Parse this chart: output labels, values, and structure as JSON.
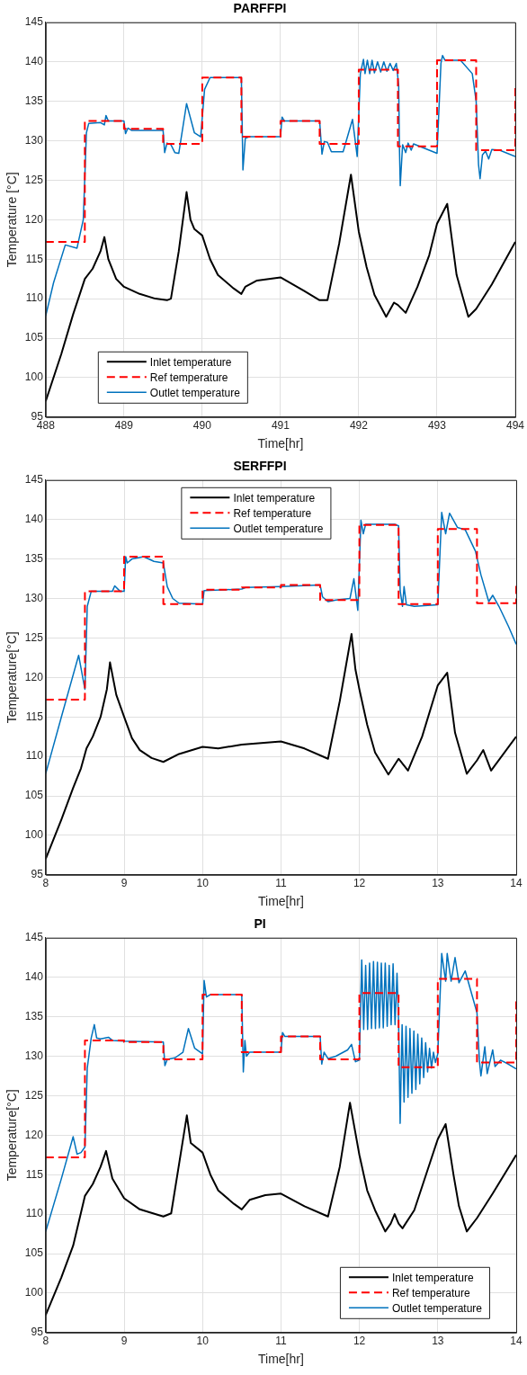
{
  "chart_data": [
    {
      "type": "line",
      "title": "PARFFPI",
      "xlabel": "Time[hr]",
      "ylabel": "Temperature [°C]",
      "xlim": [
        488,
        494
      ],
      "xticks": [
        488,
        489,
        490,
        491,
        492,
        493,
        494
      ],
      "ylim": [
        95,
        145
      ],
      "yticks": [
        95,
        100,
        105,
        110,
        115,
        120,
        125,
        130,
        135,
        140,
        145
      ],
      "grid": true,
      "legend": "bottom left",
      "marker": "none",
      "series": [
        {
          "name": "Inlet temperature",
          "color": "#000000",
          "line_style": "solid",
          "x": [
            488,
            488.2,
            488.35,
            488.5,
            488.6,
            488.7,
            488.75,
            488.8,
            488.9,
            489,
            489.2,
            489.4,
            489.55,
            489.6,
            489.7,
            489.8,
            489.85,
            489.9,
            490,
            490.1,
            490.2,
            490.4,
            490.5,
            490.55,
            490.7,
            491,
            491.3,
            491.5,
            491.6,
            491.75,
            491.9,
            492,
            492.1,
            492.2,
            492.35,
            492.45,
            492.5,
            492.6,
            492.75,
            492.9,
            493,
            493.13,
            493.25,
            493.4,
            493.5,
            493.7,
            494
          ],
          "values": [
            97,
            103,
            108,
            112.5,
            113.8,
            116,
            117.8,
            115,
            112.5,
            111.5,
            110.6,
            110,
            109.8,
            110,
            116,
            123.5,
            120,
            118.8,
            118,
            115,
            113,
            111.3,
            110.6,
            111.5,
            112.3,
            112.7,
            111,
            109.8,
            109.8,
            117,
            125.7,
            118.5,
            114,
            110.5,
            107.7,
            109.5,
            109.2,
            108.2,
            111.5,
            115.5,
            119.5,
            122,
            113,
            107.7,
            108.7,
            111.8,
            117.2
          ]
        },
        {
          "name": "Ref temperature",
          "type": "step",
          "color": "#ff0000",
          "line_style": "dashed",
          "x": [
            488,
            488.5,
            489,
            489.5,
            490,
            490.5,
            491,
            491.5,
            492,
            492.5,
            493,
            493.5,
            494
          ],
          "values": [
            117.2,
            132.5,
            131.5,
            129.6,
            138,
            130.5,
            132.5,
            129.6,
            139,
            129.3,
            140.2,
            128.8,
            137
          ]
        },
        {
          "name": "Outlet temperature",
          "color": "#0072bd",
          "line_style": "solid",
          "x": [
            488,
            488.1,
            488.25,
            488.4,
            488.48,
            488.52,
            488.55,
            488.7,
            488.75,
            488.77,
            488.8,
            489,
            489.02,
            489.05,
            489.1,
            489.5,
            489.52,
            489.55,
            489.6,
            489.65,
            489.7,
            489.8,
            489.9,
            489.98,
            490.03,
            490.1,
            490.5,
            490.52,
            490.55,
            490.6,
            491,
            491.02,
            491.05,
            491.5,
            491.53,
            491.56,
            491.6,
            491.65,
            491.8,
            491.92,
            491.98,
            492.02,
            492.06,
            492.08,
            492.11,
            492.14,
            492.17,
            492.2,
            492.24,
            492.28,
            492.32,
            492.36,
            492.4,
            492.44,
            492.48,
            492.51,
            492.52,
            492.53,
            492.56,
            492.6,
            492.63,
            492.67,
            492.7,
            493,
            493.05,
            493.07,
            493.1,
            493.3,
            493.45,
            493.5,
            493.53,
            493.55,
            493.58,
            493.62,
            493.66,
            493.7,
            493.8,
            494
          ],
          "values": [
            107.8,
            112,
            116.8,
            116.4,
            120,
            131,
            132.2,
            132.3,
            132,
            133.2,
            132.5,
            132.5,
            130.9,
            131.6,
            131.3,
            131.3,
            128.5,
            129.7,
            129.5,
            128.5,
            128.4,
            134.7,
            131,
            130.5,
            136.5,
            138,
            138,
            126.3,
            130.3,
            130.5,
            130.5,
            133,
            132.5,
            132.5,
            128.3,
            129.9,
            129.8,
            128.6,
            128.6,
            132.7,
            128,
            138.5,
            140.3,
            138.5,
            140.2,
            138.5,
            140.2,
            138.6,
            140,
            138.7,
            140,
            138.8,
            139.8,
            138.9,
            139.8,
            137,
            129,
            124.3,
            129.5,
            128.5,
            129.7,
            128.8,
            129.6,
            128.4,
            139.8,
            140.8,
            140.2,
            140.2,
            138.5,
            135,
            127,
            125.2,
            128.2,
            128.7,
            127.7,
            128.9,
            128.8,
            128
          ]
        }
      ]
    },
    {
      "type": "line",
      "title": "SERFFPI",
      "xlabel": "Time[hr]",
      "ylabel": "Temperature[°C]",
      "xlim": [
        8,
        14
      ],
      "xticks": [
        8,
        9,
        10,
        11,
        12,
        13,
        14
      ],
      "ylim": [
        95,
        145
      ],
      "yticks": [
        95,
        100,
        105,
        110,
        115,
        120,
        125,
        130,
        135,
        140,
        145
      ],
      "grid": true,
      "legend": "top",
      "marker": "none",
      "series": [
        {
          "name": "Inlet temperature",
          "color": "#000000",
          "line_style": "solid",
          "x": [
            8,
            8.2,
            8.35,
            8.45,
            8.52,
            8.6,
            8.7,
            8.78,
            8.82,
            8.9,
            9,
            9.1,
            9.2,
            9.35,
            9.5,
            9.7,
            10,
            10.2,
            10.5,
            11,
            11.3,
            11.6,
            11.75,
            11.9,
            11.95,
            12,
            12.1,
            12.2,
            12.37,
            12.5,
            12.62,
            12.8,
            13,
            13.12,
            13.22,
            13.37,
            13.5,
            13.58,
            13.68,
            14
          ],
          "values": [
            97,
            102,
            106,
            108.5,
            111,
            112.5,
            115,
            118.5,
            121.9,
            117.8,
            115,
            112.3,
            110.8,
            109.8,
            109.3,
            110.3,
            111.2,
            111,
            111.5,
            111.9,
            111,
            109.7,
            117,
            125.5,
            121,
            118.5,
            114,
            110.5,
            107.7,
            109.7,
            108.2,
            112.5,
            119,
            120.6,
            113,
            107.8,
            109.5,
            110.8,
            108.2,
            112.5
          ]
        },
        {
          "name": "Ref temperature",
          "type": "step",
          "color": "#ff0000",
          "line_style": "dashed",
          "x": [
            8,
            8.5,
            9,
            9.5,
            10,
            10.5,
            11,
            11.5,
            12,
            12.5,
            13,
            13.5,
            14
          ],
          "values": [
            117.2,
            130.9,
            135.3,
            129.3,
            131.1,
            131.4,
            131.7,
            129.8,
            139.3,
            129.3,
            138.8,
            129.4,
            131.7
          ]
        },
        {
          "name": "Outlet temperature",
          "color": "#0072bd",
          "line_style": "solid",
          "x": [
            8,
            8.2,
            8.42,
            8.5,
            8.53,
            8.58,
            8.85,
            8.88,
            8.95,
            9,
            9.02,
            9.04,
            9.1,
            9.25,
            9.38,
            9.5,
            9.55,
            9.62,
            9.7,
            10,
            10.02,
            10.3,
            10.5,
            10.55,
            11,
            11.5,
            11.53,
            11.6,
            11.7,
            11.88,
            11.93,
            11.98,
            12.02,
            12.05,
            12.08,
            12.45,
            12.5,
            12.52,
            12.55,
            12.57,
            12.6,
            12.7,
            13,
            13.05,
            13.1,
            13.15,
            13.25,
            13.35,
            13.48,
            13.55,
            13.65,
            13.7,
            13.78,
            13.9,
            14
          ],
          "values": [
            107.8,
            115,
            122.8,
            118.5,
            129,
            130.9,
            130.9,
            131.6,
            130.9,
            130.9,
            135.3,
            134.5,
            135,
            135.3,
            134.7,
            134.5,
            131.5,
            130,
            129.4,
            129.3,
            131,
            131.1,
            131.2,
            131.4,
            131.5,
            131.7,
            130.2,
            129.6,
            129.8,
            130,
            132.5,
            128.5,
            139.9,
            138.2,
            139.4,
            139.4,
            139.2,
            131,
            129,
            131.5,
            129.2,
            129,
            129.2,
            140.9,
            138.2,
            140.8,
            139,
            138.7,
            136,
            133,
            129.6,
            130.4,
            129,
            126.5,
            124.2
          ]
        }
      ]
    },
    {
      "type": "line",
      "title": "PI",
      "xlabel": "Time[hr]",
      "ylabel": "Temperature[°C]",
      "xlim": [
        8,
        14
      ],
      "xticks": [
        8,
        9,
        10,
        11,
        12,
        13,
        14
      ],
      "ylim": [
        95,
        145
      ],
      "yticks": [
        95,
        100,
        105,
        110,
        115,
        120,
        125,
        130,
        135,
        140,
        145
      ],
      "grid": true,
      "legend": "bottom right",
      "marker": "none",
      "series": [
        {
          "name": "Inlet temperature",
          "color": "#000000",
          "line_style": "solid",
          "x": [
            8,
            8.2,
            8.35,
            8.5,
            8.6,
            8.7,
            8.77,
            8.85,
            9,
            9.2,
            9.5,
            9.6,
            9.8,
            9.85,
            10,
            10.1,
            10.2,
            10.4,
            10.5,
            10.6,
            10.8,
            11,
            11.3,
            11.6,
            11.75,
            11.88,
            12,
            12.1,
            12.2,
            12.33,
            12.4,
            12.45,
            12.5,
            12.55,
            12.7,
            12.85,
            13,
            13.1,
            13.2,
            13.27,
            13.37,
            13.5,
            13.7,
            14
          ],
          "values": [
            97.2,
            102,
            106,
            112.3,
            113.8,
            116,
            118,
            114.5,
            112,
            110.6,
            109.7,
            110.1,
            122.5,
            119,
            117.8,
            115,
            113,
            111.3,
            110.6,
            111.8,
            112.4,
            112.6,
            111,
            109.7,
            116,
            124.1,
            117.5,
            113,
            110.5,
            107.8,
            108.8,
            110,
            108.8,
            108.2,
            110.5,
            115,
            119.5,
            121.4,
            115,
            111,
            107.8,
            109.5,
            112.6,
            117.5
          ]
        },
        {
          "name": "Ref temperature",
          "type": "step",
          "color": "#ff0000",
          "line_style": "dashed",
          "x": [
            8,
            8.5,
            9,
            9.5,
            10,
            10.5,
            11,
            11.5,
            12,
            12.5,
            13,
            13.5,
            14
          ],
          "values": [
            117.2,
            132,
            131.8,
            129.6,
            137.8,
            130.5,
            132.5,
            129.6,
            138,
            128.6,
            139.8,
            129.2,
            137.5
          ]
        },
        {
          "name": "Outlet temperature",
          "color": "#0072bd",
          "line_style": "solid",
          "x": [
            8,
            8.2,
            8.35,
            8.4,
            8.45,
            8.5,
            8.53,
            8.58,
            8.62,
            8.65,
            8.7,
            8.8,
            8.85,
            9,
            9.5,
            9.52,
            9.55,
            9.65,
            9.75,
            9.82,
            9.9,
            10,
            10.02,
            10.05,
            10.1,
            10.5,
            10.52,
            10.54,
            10.56,
            10.6,
            11,
            11.02,
            11.05,
            11.5,
            11.52,
            11.55,
            11.6,
            11.7,
            11.85,
            11.9,
            11.95,
            12,
            12.03,
            12.055,
            12.08,
            12.105,
            12.13,
            12.155,
            12.18,
            12.205,
            12.23,
            12.255,
            12.28,
            12.305,
            12.33,
            12.355,
            12.38,
            12.405,
            12.43,
            12.455,
            12.48,
            12.5,
            12.52,
            12.545,
            12.57,
            12.595,
            12.62,
            12.645,
            12.67,
            12.695,
            12.72,
            12.745,
            12.77,
            12.795,
            12.82,
            12.845,
            12.87,
            12.895,
            12.92,
            12.945,
            12.97,
            13,
            13.05,
            13.1,
            13.12,
            13.17,
            13.22,
            13.27,
            13.35,
            13.5,
            13.53,
            13.55,
            13.6,
            13.63,
            13.7,
            13.73,
            13.8,
            13.9,
            14
          ],
          "values": [
            107.8,
            114.5,
            119.8,
            117.6,
            117.8,
            118.5,
            128.5,
            132.3,
            134,
            132.3,
            132.2,
            132.4,
            132,
            131.9,
            131.8,
            128.8,
            129.6,
            129.8,
            130.5,
            133.5,
            131,
            130.3,
            139.6,
            137.5,
            137.8,
            137.8,
            128,
            132,
            130,
            130.5,
            130.5,
            133,
            132.5,
            132.5,
            129,
            130.5,
            129.7,
            130,
            130.8,
            131.5,
            129.3,
            129.5,
            142.2,
            133.4,
            141.5,
            133.4,
            141.8,
            133.5,
            142,
            133.5,
            141.9,
            133.6,
            141.8,
            133.6,
            141.8,
            133.8,
            141.5,
            134,
            141.7,
            134,
            140.5,
            134.5,
            121.5,
            134,
            124.2,
            133.8,
            124.8,
            133.5,
            125.3,
            133.2,
            125.8,
            132.8,
            126.5,
            132.3,
            127.3,
            131.7,
            128,
            131,
            128.5,
            130.5,
            129.2,
            130.3,
            143,
            139.5,
            143,
            139.5,
            142.5,
            139.3,
            140.8,
            135.5,
            129.5,
            127.5,
            131.2,
            127.8,
            130.8,
            128.7,
            129.5,
            129,
            128.4
          ]
        }
      ]
    }
  ]
}
